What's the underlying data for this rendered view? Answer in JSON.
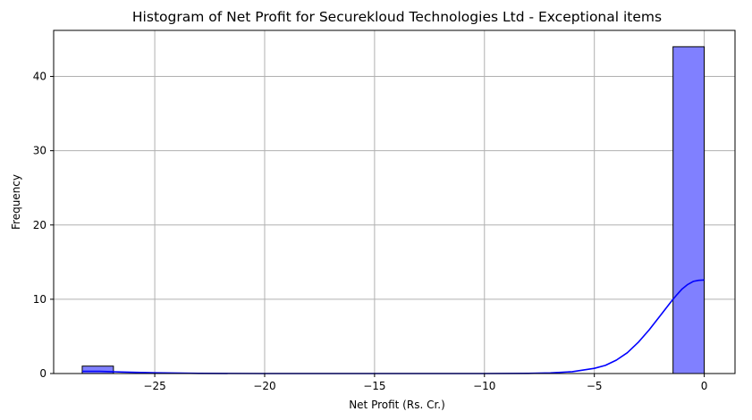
{
  "chart_data": {
    "type": "bar",
    "title": "Histogram of Net Profit for Securekloud Technologies Ltd - Exceptional items",
    "xlabel": "Net Profit (Rs. Cr.)",
    "ylabel": "Frequency",
    "xlim": [
      -29.6,
      1.4
    ],
    "ylim": [
      0,
      46.2
    ],
    "xticks": [
      -25,
      -20,
      -15,
      -10,
      -5,
      0
    ],
    "xtick_labels": [
      "−25",
      "−20",
      "−15",
      "−10",
      "−5",
      "0"
    ],
    "yticks": [
      0,
      10,
      20,
      30,
      40
    ],
    "ytick_labels": [
      "0",
      "10",
      "20",
      "30",
      "40"
    ],
    "grid": true,
    "bins": [
      {
        "x0": -28.3,
        "x1": -26.88,
        "count": 1
      },
      {
        "x0": -1.42,
        "x1": 0.0,
        "count": 44
      }
    ],
    "kde": {
      "x": [
        -28.3,
        -27.5,
        -26.5,
        -25,
        -23,
        -20,
        -15,
        -10,
        -8,
        -7,
        -6,
        -5,
        -4.5,
        -4,
        -3.5,
        -3,
        -2.5,
        -2,
        -1.5,
        -1.25,
        -1,
        -0.75,
        -0.5,
        -0.25,
        0
      ],
      "y": [
        0.3,
        0.3,
        0.2,
        0.1,
        0.02,
        0,
        0,
        0,
        0.02,
        0.08,
        0.25,
        0.7,
        1.1,
        1.8,
        2.8,
        4.2,
        5.9,
        7.8,
        9.7,
        10.6,
        11.4,
        12.0,
        12.4,
        12.55,
        12.6
      ]
    },
    "colors": {
      "bar_fill": "#8080ff",
      "bar_edge": "#000000",
      "kde_line": "#0000ff",
      "grid": "#b0b0b0"
    }
  }
}
